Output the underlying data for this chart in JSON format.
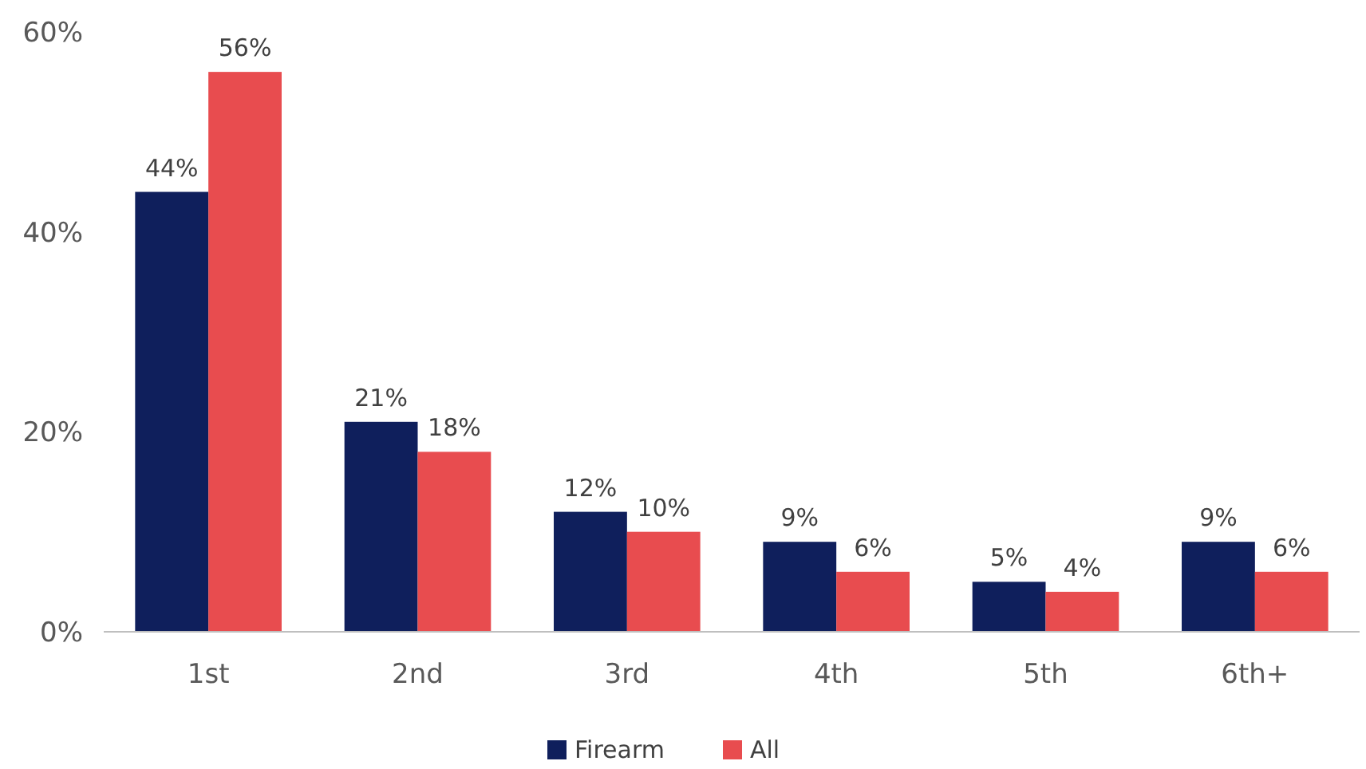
{
  "chart_data": {
    "type": "bar",
    "categories": [
      "1st",
      "2nd",
      "3rd",
      "4th",
      "5th",
      "6th+"
    ],
    "series": [
      {
        "name": "Firearm",
        "color": "#0f1f5c",
        "values": [
          44,
          21,
          12,
          9,
          5,
          9
        ],
        "value_labels": [
          "44%",
          "21%",
          "12%",
          "9%",
          "5%",
          "9%"
        ]
      },
      {
        "name": "All",
        "color": "#e84c4f",
        "values": [
          56,
          18,
          10,
          6,
          4,
          6
        ],
        "value_labels": [
          "56%",
          "18%",
          "10%",
          "6%",
          "4%",
          "6%"
        ]
      }
    ],
    "ylim": [
      0,
      60
    ],
    "yticks": [
      {
        "value": 0,
        "label": "0%"
      },
      {
        "value": 20,
        "label": "20%"
      },
      {
        "value": 40,
        "label": "40%"
      },
      {
        "value": 60,
        "label": "60%"
      }
    ],
    "grid": false,
    "legend": "bottom"
  }
}
